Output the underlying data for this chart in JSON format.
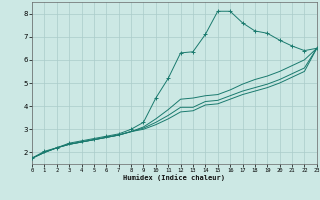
{
  "xlabel": "Humidex (Indice chaleur)",
  "background_color": "#cce8e4",
  "grid_color": "#aaccca",
  "line_color": "#1a7a6e",
  "xlim": [
    0,
    23
  ],
  "ylim": [
    1.5,
    8.5
  ],
  "xticks": [
    0,
    1,
    2,
    3,
    4,
    5,
    6,
    7,
    8,
    9,
    10,
    11,
    12,
    13,
    14,
    15,
    16,
    17,
    18,
    19,
    20,
    21,
    22,
    23
  ],
  "yticks": [
    2,
    3,
    4,
    5,
    6,
    7,
    8
  ],
  "series1_x": [
    0,
    1,
    2,
    3,
    4,
    5,
    6,
    7,
    8,
    9,
    10,
    11,
    12,
    13,
    14,
    15,
    16,
    17,
    18,
    19,
    20,
    21,
    22,
    23
  ],
  "series1_y": [
    1.75,
    2.05,
    2.2,
    2.4,
    2.5,
    2.6,
    2.7,
    2.8,
    3.0,
    3.3,
    4.35,
    5.2,
    6.3,
    6.35,
    7.1,
    8.1,
    8.1,
    7.6,
    7.25,
    7.15,
    6.85,
    6.6,
    6.4,
    6.5
  ],
  "series2_x": [
    0,
    1,
    2,
    3,
    4,
    5,
    6,
    7,
    8,
    9,
    10,
    11,
    12,
    13,
    14,
    15,
    16,
    17,
    18,
    19,
    20,
    21,
    22,
    23
  ],
  "series2_y": [
    1.75,
    2.0,
    2.2,
    2.35,
    2.45,
    2.55,
    2.65,
    2.75,
    2.9,
    3.1,
    3.45,
    3.85,
    4.3,
    4.35,
    4.45,
    4.5,
    4.7,
    4.95,
    5.15,
    5.3,
    5.5,
    5.75,
    6.0,
    6.5
  ],
  "series3_x": [
    0,
    1,
    2,
    3,
    4,
    5,
    6,
    7,
    8,
    9,
    10,
    11,
    12,
    13,
    14,
    15,
    16,
    17,
    18,
    19,
    20,
    21,
    22,
    23
  ],
  "series3_y": [
    1.75,
    2.0,
    2.2,
    2.35,
    2.45,
    2.55,
    2.65,
    2.75,
    2.9,
    3.05,
    3.3,
    3.6,
    3.95,
    3.95,
    4.2,
    4.25,
    4.45,
    4.65,
    4.8,
    4.95,
    5.15,
    5.4,
    5.65,
    6.5
  ],
  "series4_x": [
    0,
    1,
    2,
    3,
    4,
    5,
    6,
    7,
    8,
    9,
    10,
    11,
    12,
    13,
    14,
    15,
    16,
    17,
    18,
    19,
    20,
    21,
    22,
    23
  ],
  "series4_y": [
    1.75,
    2.0,
    2.2,
    2.35,
    2.45,
    2.55,
    2.65,
    2.75,
    2.9,
    3.0,
    3.2,
    3.45,
    3.75,
    3.8,
    4.05,
    4.1,
    4.3,
    4.5,
    4.65,
    4.8,
    5.0,
    5.25,
    5.5,
    6.5
  ]
}
